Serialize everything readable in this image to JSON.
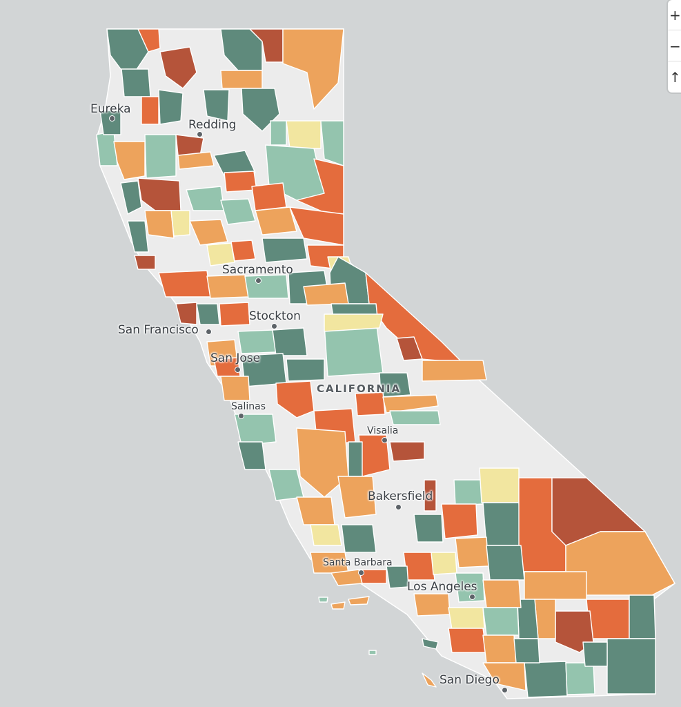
{
  "map": {
    "cities": [
      {
        "name": "Eureka"
      },
      {
        "name": "Redding"
      },
      {
        "name": "Sacramento"
      },
      {
        "name": "Stockton"
      },
      {
        "name": "San Francisco"
      },
      {
        "name": "San Jose"
      },
      {
        "name": "Salinas"
      },
      {
        "name": "Visalia"
      },
      {
        "name": "Bakersfield"
      },
      {
        "name": "Santa Barbara"
      },
      {
        "name": "Los Angeles"
      },
      {
        "name": "San Diego"
      }
    ],
    "state_label": "CALIFORNIA",
    "colors": {
      "ocean": "#d2d5d6",
      "land": "#ececec",
      "dark_teal": "#5f8a7c",
      "light_teal": "#94c4ae",
      "pale_yellow": "#f2e6a0",
      "light_orange": "#eda35c",
      "orange_red": "#e46c3d",
      "dark_rust": "#b5543a"
    }
  },
  "controls": {
    "zoom_in_label": "+",
    "zoom_out_label": "−",
    "compass_label": "↑"
  }
}
